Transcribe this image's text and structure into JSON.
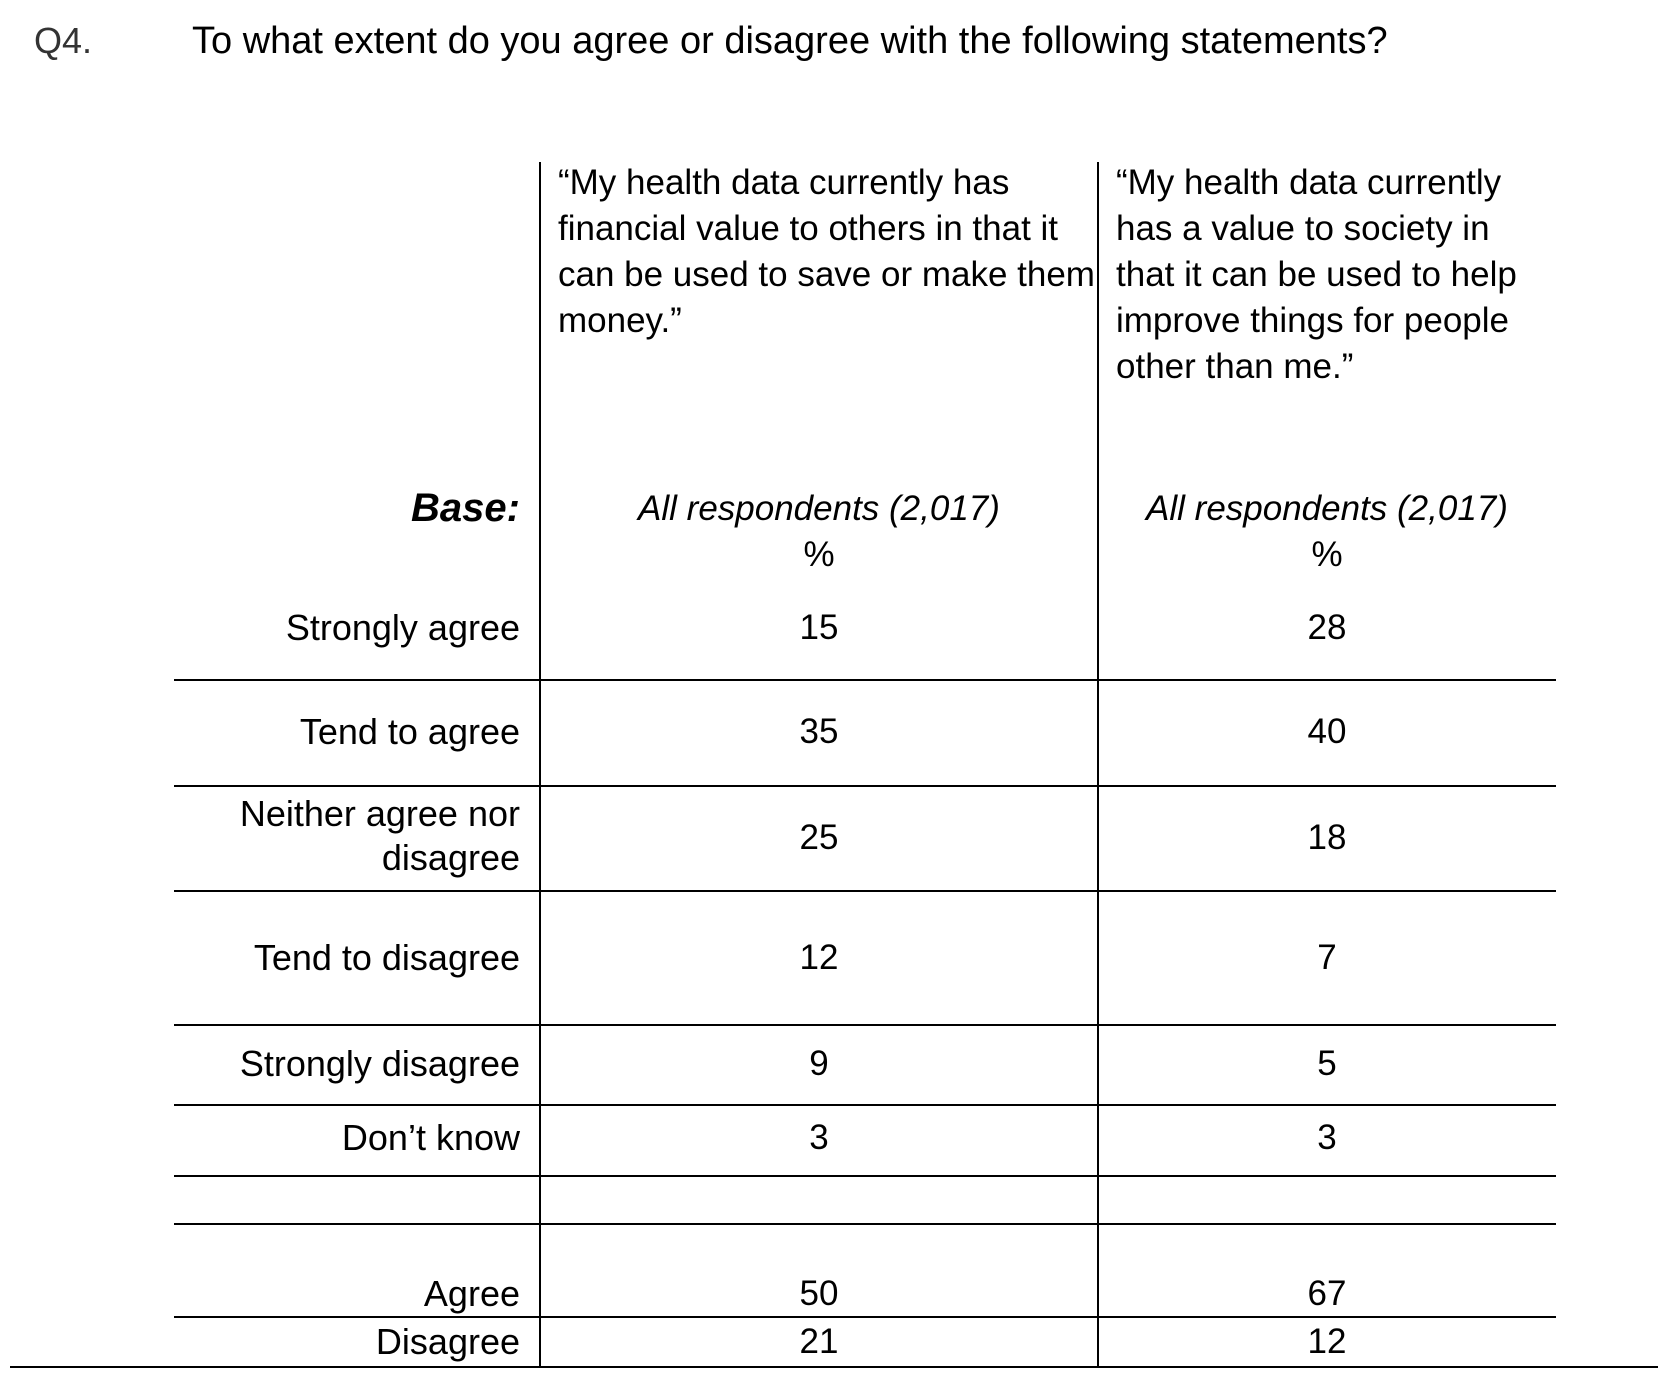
{
  "question": {
    "number": "Q4.",
    "text": "To what extent do you agree or disagree with the following statements?"
  },
  "columns": [
    {
      "statement": "“My health data currently has financial value to others in that it can be used to save or make them money.”",
      "base": "All respondents (2,017)",
      "unit": "%"
    },
    {
      "statement": "“My health data currently has a value to society in that it can be used to help improve things for people other than me.”",
      "base": "All respondents (2,017)",
      "unit": "%"
    }
  ],
  "base_label": "Base:",
  "rows": [
    {
      "label": "Strongly agree",
      "values": [
        "15",
        "28"
      ]
    },
    {
      "label": "Tend to agree",
      "values": [
        "35",
        "40"
      ]
    },
    {
      "label": "Neither agree nor disagree",
      "values": [
        "25",
        "18"
      ]
    },
    {
      "label": "Tend to disagree",
      "values": [
        "12",
        "7"
      ]
    },
    {
      "label": "Strongly disagree",
      "values": [
        "9",
        "5"
      ]
    },
    {
      "label": "Don’t know",
      "values": [
        "3",
        "3"
      ]
    }
  ],
  "summary": [
    {
      "label": "Agree",
      "values": [
        "50",
        "67"
      ]
    },
    {
      "label": "Disagree",
      "values": [
        "21",
        "12"
      ]
    }
  ]
}
